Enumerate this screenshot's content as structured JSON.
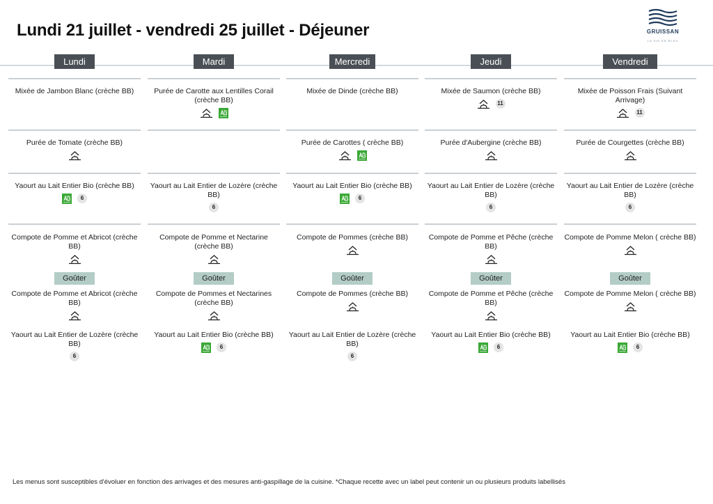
{
  "title": "Lundi 21 juillet - vendredi 25 juillet  - Déjeuner",
  "logo": {
    "text": "GRUISSAN",
    "subtext": "LA VIE EN BLEU"
  },
  "colors": {
    "header_bg": "#4a4f55",
    "gouter_bg": "#b3ccc6",
    "separator": "#c9cfd3",
    "bio_green": "#3aa836"
  },
  "gouter_label": "Goûter",
  "label_icons": {
    "fait_maison": "fait-maison-icon",
    "bio": "ab-bio-icon"
  },
  "days": [
    {
      "name": "Lundi",
      "sections": [
        [
          {
            "name": "Mixée de Jambon Blanc (crèche BB)",
            "labels": []
          }
        ],
        [
          {
            "name": "Purée de Tomate  (crèche  BB)",
            "labels": [
              "fait_maison"
            ]
          }
        ],
        [
          {
            "name": "Yaourt au Lait Entier Bio  (crèche BB)",
            "labels": [
              "bio",
              "6"
            ]
          }
        ],
        [
          {
            "name": "Compote de Pomme et  Abricot (crèche BB)",
            "labels": [
              "fait_maison"
            ]
          }
        ],
        [
          {
            "name": "Compote de Pomme et  Abricot (crèche BB)",
            "labels": [
              "fait_maison"
            ]
          },
          {
            "name": "Yaourt au Lait Entier de Lozère (crèche BB)",
            "labels": [
              "6"
            ]
          }
        ]
      ]
    },
    {
      "name": "Mardi",
      "sections": [
        [
          {
            "name": "Purée de Carotte aux Lentilles Corail (crèche BB)",
            "labels": [
              "fait_maison",
              "bio"
            ]
          }
        ],
        [],
        [
          {
            "name": "Yaourt au Lait Entier de Lozère (crèche BB)",
            "labels": [
              "6"
            ]
          }
        ],
        [
          {
            "name": "Compote de Pomme et Nectarine (crèche BB)",
            "labels": [
              "fait_maison"
            ]
          }
        ],
        [
          {
            "name": "Compote de Pommes et Nectarines (crèche BB)",
            "labels": [
              "fait_maison"
            ]
          },
          {
            "name": "Yaourt au Lait Entier Bio  (crèche BB)",
            "labels": [
              "bio",
              "6"
            ]
          }
        ]
      ]
    },
    {
      "name": "Mercredi",
      "sections": [
        [
          {
            "name": "Mixée de Dinde (crèche BB)",
            "labels": []
          }
        ],
        [
          {
            "name": "Purée de Carottes ( crèche BB)",
            "labels": [
              "fait_maison",
              "bio"
            ]
          }
        ],
        [
          {
            "name": "Yaourt au Lait Entier Bio  (crèche BB)",
            "labels": [
              "bio",
              "6"
            ]
          }
        ],
        [
          {
            "name": "Compote de Pommes (crèche BB)",
            "labels": [
              "fait_maison"
            ]
          }
        ],
        [
          {
            "name": "Compote de Pommes (crèche BB)",
            "labels": [
              "fait_maison"
            ]
          },
          {
            "name": "Yaourt au Lait Entier de Lozère (crèche BB)",
            "labels": [
              "6"
            ]
          }
        ]
      ]
    },
    {
      "name": "Jeudi",
      "sections": [
        [
          {
            "name": "Mixée de Saumon  (crèche BB)",
            "labels": [
              "fait_maison",
              "11"
            ]
          }
        ],
        [
          {
            "name": "Purée d'Aubergine (crèche BB)",
            "labels": [
              "fait_maison"
            ]
          }
        ],
        [
          {
            "name": "Yaourt au Lait Entier de Lozère (crèche BB)",
            "labels": [
              "6"
            ]
          }
        ],
        [
          {
            "name": "Compote de Pomme et Pêche  (crèche BB)",
            "labels": [
              "fait_maison"
            ]
          }
        ],
        [
          {
            "name": "Compote de Pomme et Pêche  (crèche BB)",
            "labels": [
              "fait_maison"
            ]
          },
          {
            "name": "Yaourt au Lait Entier Bio  (crèche BB)",
            "labels": [
              "bio",
              "6"
            ]
          }
        ]
      ]
    },
    {
      "name": "Vendredi",
      "sections": [
        [
          {
            "name": "Mixée de Poisson Frais (Suivant Arrivage)",
            "labels": [
              "fait_maison",
              "11"
            ]
          }
        ],
        [
          {
            "name": "Purée de Courgettes (crèche BB)",
            "labels": [
              "fait_maison"
            ]
          }
        ],
        [
          {
            "name": "Yaourt au Lait Entier de Lozère (crèche BB)",
            "labels": [
              "6"
            ]
          }
        ],
        [
          {
            "name": "Compote de Pomme Melon ( crèche BB)",
            "labels": [
              "fait_maison"
            ]
          }
        ],
        [
          {
            "name": "Compote de Pomme Melon ( crèche BB)",
            "labels": [
              "fait_maison"
            ]
          },
          {
            "name": "Yaourt au Lait Entier Bio  (crèche BB)",
            "labels": [
              "bio",
              "6"
            ]
          }
        ]
      ]
    }
  ],
  "footer": "Les menus sont susceptibles d'évoluer en fonction des arrivages et des mesures anti-gaspillage de la cuisine. *Chaque recette avec un label peut contenir un ou plusieurs produits labellisés"
}
